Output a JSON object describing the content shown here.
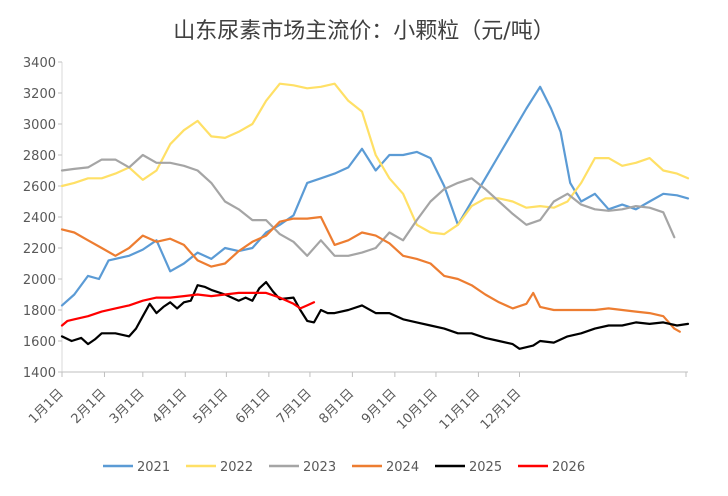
{
  "chart_data": {
    "type": "line",
    "title": "山东尿素市场主流价：小颗粒（元/吨）",
    "xlabel": "",
    "ylabel": "",
    "ylim": [
      1400,
      3400
    ],
    "y_ticks": [
      1400,
      1600,
      1800,
      2000,
      2200,
      2400,
      2600,
      2800,
      3000,
      3200,
      3400
    ],
    "x_ticks": [
      "1月1日",
      "2月1日",
      "3月1日",
      "4月1日",
      "5月1日",
      "6月1日",
      "7月1日",
      "8月1日",
      "9月1日",
      "10月1日",
      "11月1日",
      "12月1日"
    ],
    "x_axis": "day of year (1 = 1月1日)",
    "grid": false,
    "legend_position": "bottom",
    "series": [
      {
        "name": "2021",
        "color": "#5B9BD5",
        "points": [
          [
            1,
            1830
          ],
          [
            10,
            1900
          ],
          [
            20,
            2020
          ],
          [
            28,
            2000
          ],
          [
            35,
            2120
          ],
          [
            50,
            2150
          ],
          [
            60,
            2190
          ],
          [
            70,
            2250
          ],
          [
            80,
            2050
          ],
          [
            90,
            2100
          ],
          [
            100,
            2170
          ],
          [
            110,
            2130
          ],
          [
            120,
            2200
          ],
          [
            130,
            2180
          ],
          [
            140,
            2200
          ],
          [
            150,
            2300
          ],
          [
            160,
            2350
          ],
          [
            170,
            2410
          ],
          [
            180,
            2620
          ],
          [
            190,
            2650
          ],
          [
            200,
            2680
          ],
          [
            210,
            2720
          ],
          [
            220,
            2840
          ],
          [
            230,
            2700
          ],
          [
            240,
            2800
          ],
          [
            250,
            2800
          ],
          [
            260,
            2820
          ],
          [
            270,
            2780
          ],
          [
            280,
            2600
          ],
          [
            290,
            2350
          ],
          [
            300,
            2500
          ],
          [
            310,
            2650
          ],
          [
            320,
            2800
          ],
          [
            330,
            2950
          ],
          [
            340,
            3100
          ],
          [
            350,
            3240
          ],
          [
            358,
            3100
          ],
          [
            365,
            2950
          ],
          [
            372,
            2620
          ],
          [
            380,
            2500
          ],
          [
            390,
            2550
          ],
          [
            400,
            2450
          ],
          [
            410,
            2480
          ],
          [
            420,
            2450
          ],
          [
            430,
            2500
          ],
          [
            440,
            2550
          ],
          [
            450,
            2540
          ],
          [
            458,
            2520
          ]
        ]
      },
      {
        "name": "2022",
        "color": "#FFE066",
        "points": [
          [
            1,
            2600
          ],
          [
            10,
            2620
          ],
          [
            20,
            2650
          ],
          [
            30,
            2650
          ],
          [
            40,
            2680
          ],
          [
            50,
            2720
          ],
          [
            60,
            2640
          ],
          [
            70,
            2700
          ],
          [
            80,
            2870
          ],
          [
            90,
            2960
          ],
          [
            100,
            3020
          ],
          [
            110,
            2920
          ],
          [
            120,
            2910
          ],
          [
            130,
            2950
          ],
          [
            140,
            3000
          ],
          [
            150,
            3150
          ],
          [
            160,
            3260
          ],
          [
            170,
            3250
          ],
          [
            180,
            3230
          ],
          [
            190,
            3240
          ],
          [
            200,
            3260
          ],
          [
            210,
            3150
          ],
          [
            220,
            3080
          ],
          [
            230,
            2800
          ],
          [
            240,
            2650
          ],
          [
            250,
            2550
          ],
          [
            260,
            2350
          ],
          [
            270,
            2300
          ],
          [
            280,
            2290
          ],
          [
            290,
            2350
          ],
          [
            300,
            2470
          ],
          [
            310,
            2520
          ],
          [
            320,
            2520
          ],
          [
            330,
            2500
          ],
          [
            340,
            2460
          ],
          [
            350,
            2470
          ],
          [
            360,
            2460
          ],
          [
            370,
            2500
          ],
          [
            380,
            2620
          ],
          [
            390,
            2780
          ],
          [
            400,
            2780
          ],
          [
            410,
            2730
          ],
          [
            420,
            2750
          ],
          [
            430,
            2780
          ],
          [
            440,
            2700
          ],
          [
            450,
            2680
          ],
          [
            458,
            2650
          ]
        ]
      },
      {
        "name": "2023",
        "color": "#A5A5A5",
        "points": [
          [
            1,
            2700
          ],
          [
            10,
            2710
          ],
          [
            20,
            2720
          ],
          [
            30,
            2770
          ],
          [
            40,
            2770
          ],
          [
            50,
            2720
          ],
          [
            60,
            2800
          ],
          [
            70,
            2750
          ],
          [
            80,
            2750
          ],
          [
            90,
            2730
          ],
          [
            100,
            2700
          ],
          [
            110,
            2620
          ],
          [
            120,
            2500
          ],
          [
            130,
            2450
          ],
          [
            140,
            2380
          ],
          [
            150,
            2380
          ],
          [
            160,
            2290
          ],
          [
            170,
            2240
          ],
          [
            180,
            2150
          ],
          [
            190,
            2250
          ],
          [
            200,
            2150
          ],
          [
            210,
            2150
          ],
          [
            220,
            2170
          ],
          [
            230,
            2200
          ],
          [
            240,
            2300
          ],
          [
            250,
            2250
          ],
          [
            260,
            2380
          ],
          [
            270,
            2500
          ],
          [
            280,
            2580
          ],
          [
            290,
            2620
          ],
          [
            300,
            2650
          ],
          [
            310,
            2580
          ],
          [
            320,
            2500
          ],
          [
            330,
            2420
          ],
          [
            340,
            2350
          ],
          [
            350,
            2380
          ],
          [
            360,
            2500
          ],
          [
            370,
            2550
          ],
          [
            380,
            2480
          ],
          [
            390,
            2450
          ],
          [
            400,
            2440
          ],
          [
            410,
            2450
          ],
          [
            420,
            2470
          ],
          [
            430,
            2460
          ],
          [
            440,
            2430
          ],
          [
            448,
            2270
          ]
        ]
      },
      {
        "name": "2024",
        "color": "#ED7D31",
        "points": [
          [
            1,
            2320
          ],
          [
            10,
            2300
          ],
          [
            20,
            2250
          ],
          [
            30,
            2200
          ],
          [
            40,
            2150
          ],
          [
            50,
            2200
          ],
          [
            60,
            2280
          ],
          [
            70,
            2240
          ],
          [
            80,
            2260
          ],
          [
            90,
            2220
          ],
          [
            100,
            2120
          ],
          [
            110,
            2080
          ],
          [
            120,
            2100
          ],
          [
            130,
            2180
          ],
          [
            140,
            2240
          ],
          [
            150,
            2280
          ],
          [
            160,
            2370
          ],
          [
            170,
            2390
          ],
          [
            180,
            2390
          ],
          [
            190,
            2400
          ],
          [
            200,
            2220
          ],
          [
            210,
            2250
          ],
          [
            220,
            2300
          ],
          [
            230,
            2280
          ],
          [
            240,
            2230
          ],
          [
            250,
            2150
          ],
          [
            260,
            2130
          ],
          [
            270,
            2100
          ],
          [
            280,
            2020
          ],
          [
            290,
            2000
          ],
          [
            300,
            1960
          ],
          [
            310,
            1900
          ],
          [
            320,
            1850
          ],
          [
            330,
            1810
          ],
          [
            340,
            1840
          ],
          [
            345,
            1910
          ],
          [
            350,
            1820
          ],
          [
            360,
            1800
          ],
          [
            370,
            1800
          ],
          [
            380,
            1800
          ],
          [
            390,
            1800
          ],
          [
            400,
            1810
          ],
          [
            410,
            1800
          ],
          [
            420,
            1790
          ],
          [
            430,
            1780
          ],
          [
            440,
            1760
          ],
          [
            448,
            1680
          ],
          [
            452,
            1660
          ]
        ]
      },
      {
        "name": "2025",
        "color": "#000000",
        "points": [
          [
            1,
            1630
          ],
          [
            8,
            1600
          ],
          [
            15,
            1620
          ],
          [
            20,
            1580
          ],
          [
            25,
            1610
          ],
          [
            30,
            1650
          ],
          [
            40,
            1650
          ],
          [
            50,
            1630
          ],
          [
            55,
            1680
          ],
          [
            60,
            1760
          ],
          [
            65,
            1840
          ],
          [
            70,
            1780
          ],
          [
            75,
            1820
          ],
          [
            80,
            1850
          ],
          [
            85,
            1810
          ],
          [
            90,
            1850
          ],
          [
            95,
            1860
          ],
          [
            100,
            1960
          ],
          [
            105,
            1950
          ],
          [
            110,
            1930
          ],
          [
            120,
            1900
          ],
          [
            130,
            1860
          ],
          [
            135,
            1880
          ],
          [
            140,
            1860
          ],
          [
            145,
            1940
          ],
          [
            150,
            1980
          ],
          [
            155,
            1920
          ],
          [
            160,
            1870
          ],
          [
            170,
            1880
          ],
          [
            175,
            1800
          ],
          [
            180,
            1730
          ],
          [
            185,
            1720
          ],
          [
            190,
            1800
          ],
          [
            195,
            1780
          ],
          [
            200,
            1780
          ],
          [
            210,
            1800
          ],
          [
            220,
            1830
          ],
          [
            230,
            1780
          ],
          [
            240,
            1780
          ],
          [
            250,
            1740
          ],
          [
            260,
            1720
          ],
          [
            270,
            1700
          ],
          [
            280,
            1680
          ],
          [
            290,
            1650
          ],
          [
            300,
            1650
          ],
          [
            310,
            1620
          ],
          [
            320,
            1600
          ],
          [
            330,
            1580
          ],
          [
            335,
            1550
          ],
          [
            340,
            1560
          ],
          [
            345,
            1570
          ],
          [
            350,
            1600
          ],
          [
            360,
            1590
          ],
          [
            370,
            1630
          ],
          [
            380,
            1650
          ],
          [
            390,
            1680
          ],
          [
            400,
            1700
          ],
          [
            410,
            1700
          ],
          [
            420,
            1720
          ],
          [
            430,
            1710
          ],
          [
            440,
            1720
          ],
          [
            450,
            1700
          ],
          [
            458,
            1710
          ]
        ]
      },
      {
        "name": "2026",
        "color": "#FF0000",
        "points": [
          [
            1,
            1700
          ],
          [
            5,
            1730
          ],
          [
            10,
            1740
          ],
          [
            20,
            1760
          ],
          [
            30,
            1790
          ],
          [
            40,
            1810
          ],
          [
            50,
            1830
          ],
          [
            60,
            1860
          ],
          [
            70,
            1880
          ],
          [
            80,
            1880
          ],
          [
            90,
            1890
          ],
          [
            100,
            1900
          ],
          [
            110,
            1890
          ],
          [
            120,
            1900
          ],
          [
            130,
            1910
          ],
          [
            140,
            1910
          ],
          [
            150,
            1910
          ],
          [
            160,
            1880
          ],
          [
            170,
            1840
          ],
          [
            175,
            1810
          ],
          [
            180,
            1830
          ],
          [
            185,
            1850
          ]
        ]
      }
    ]
  }
}
